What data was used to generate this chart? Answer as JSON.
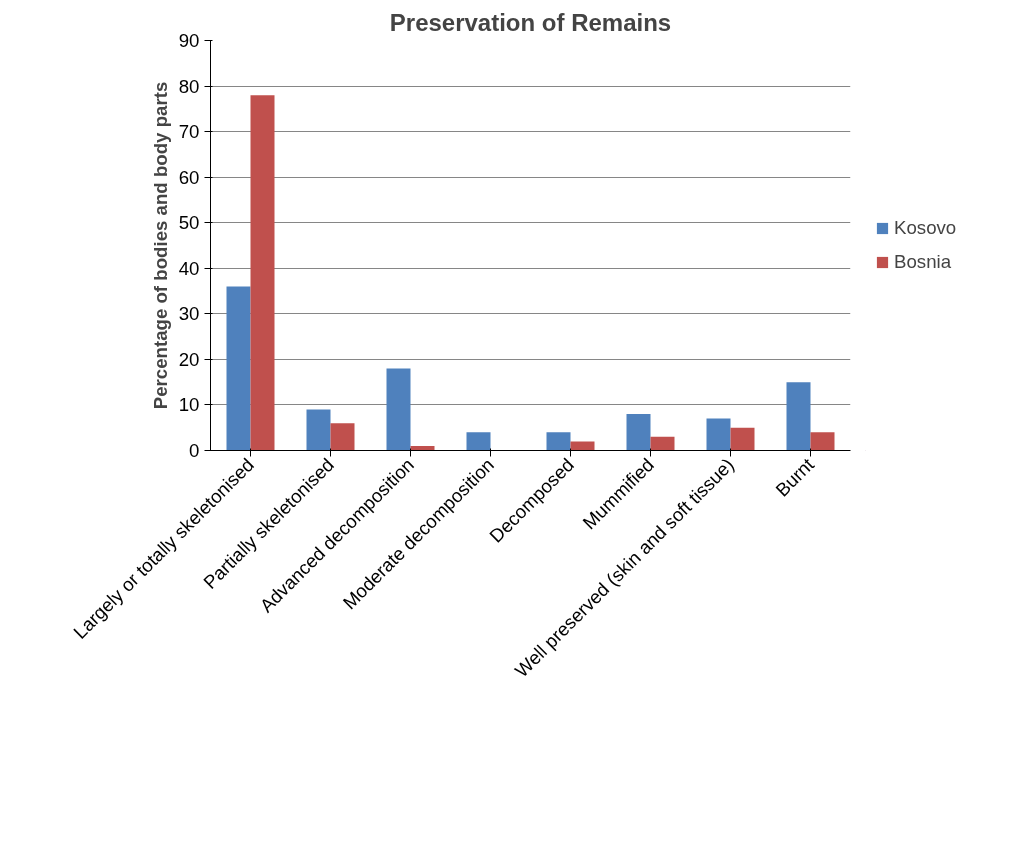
{
  "chart_data": {
    "type": "bar",
    "title": "Preservation of Remains",
    "ylabel": "Percentage of bodies and body parts",
    "categories": [
      "Largely or totally skeletonised",
      "Partially skeletonised",
      "Advanced decomposition",
      "Moderate decomposition",
      "Decomposed",
      "Mummified",
      "Well preserved (skin and soft tissue)",
      "Burnt"
    ],
    "series": [
      {
        "name": "Kosovo",
        "color": "#4f81bd",
        "values": [
          36,
          9,
          18,
          4,
          4,
          8,
          7,
          15
        ]
      },
      {
        "name": "Bosnia",
        "color": "#c0504d",
        "values": [
          78,
          6,
          1,
          0,
          2,
          3,
          5,
          4
        ]
      }
    ],
    "ylim": [
      0,
      90
    ],
    "yticks": [
      0,
      10,
      20,
      30,
      40,
      50,
      60,
      70,
      80,
      90
    ],
    "grid": "y",
    "legend": "right"
  }
}
